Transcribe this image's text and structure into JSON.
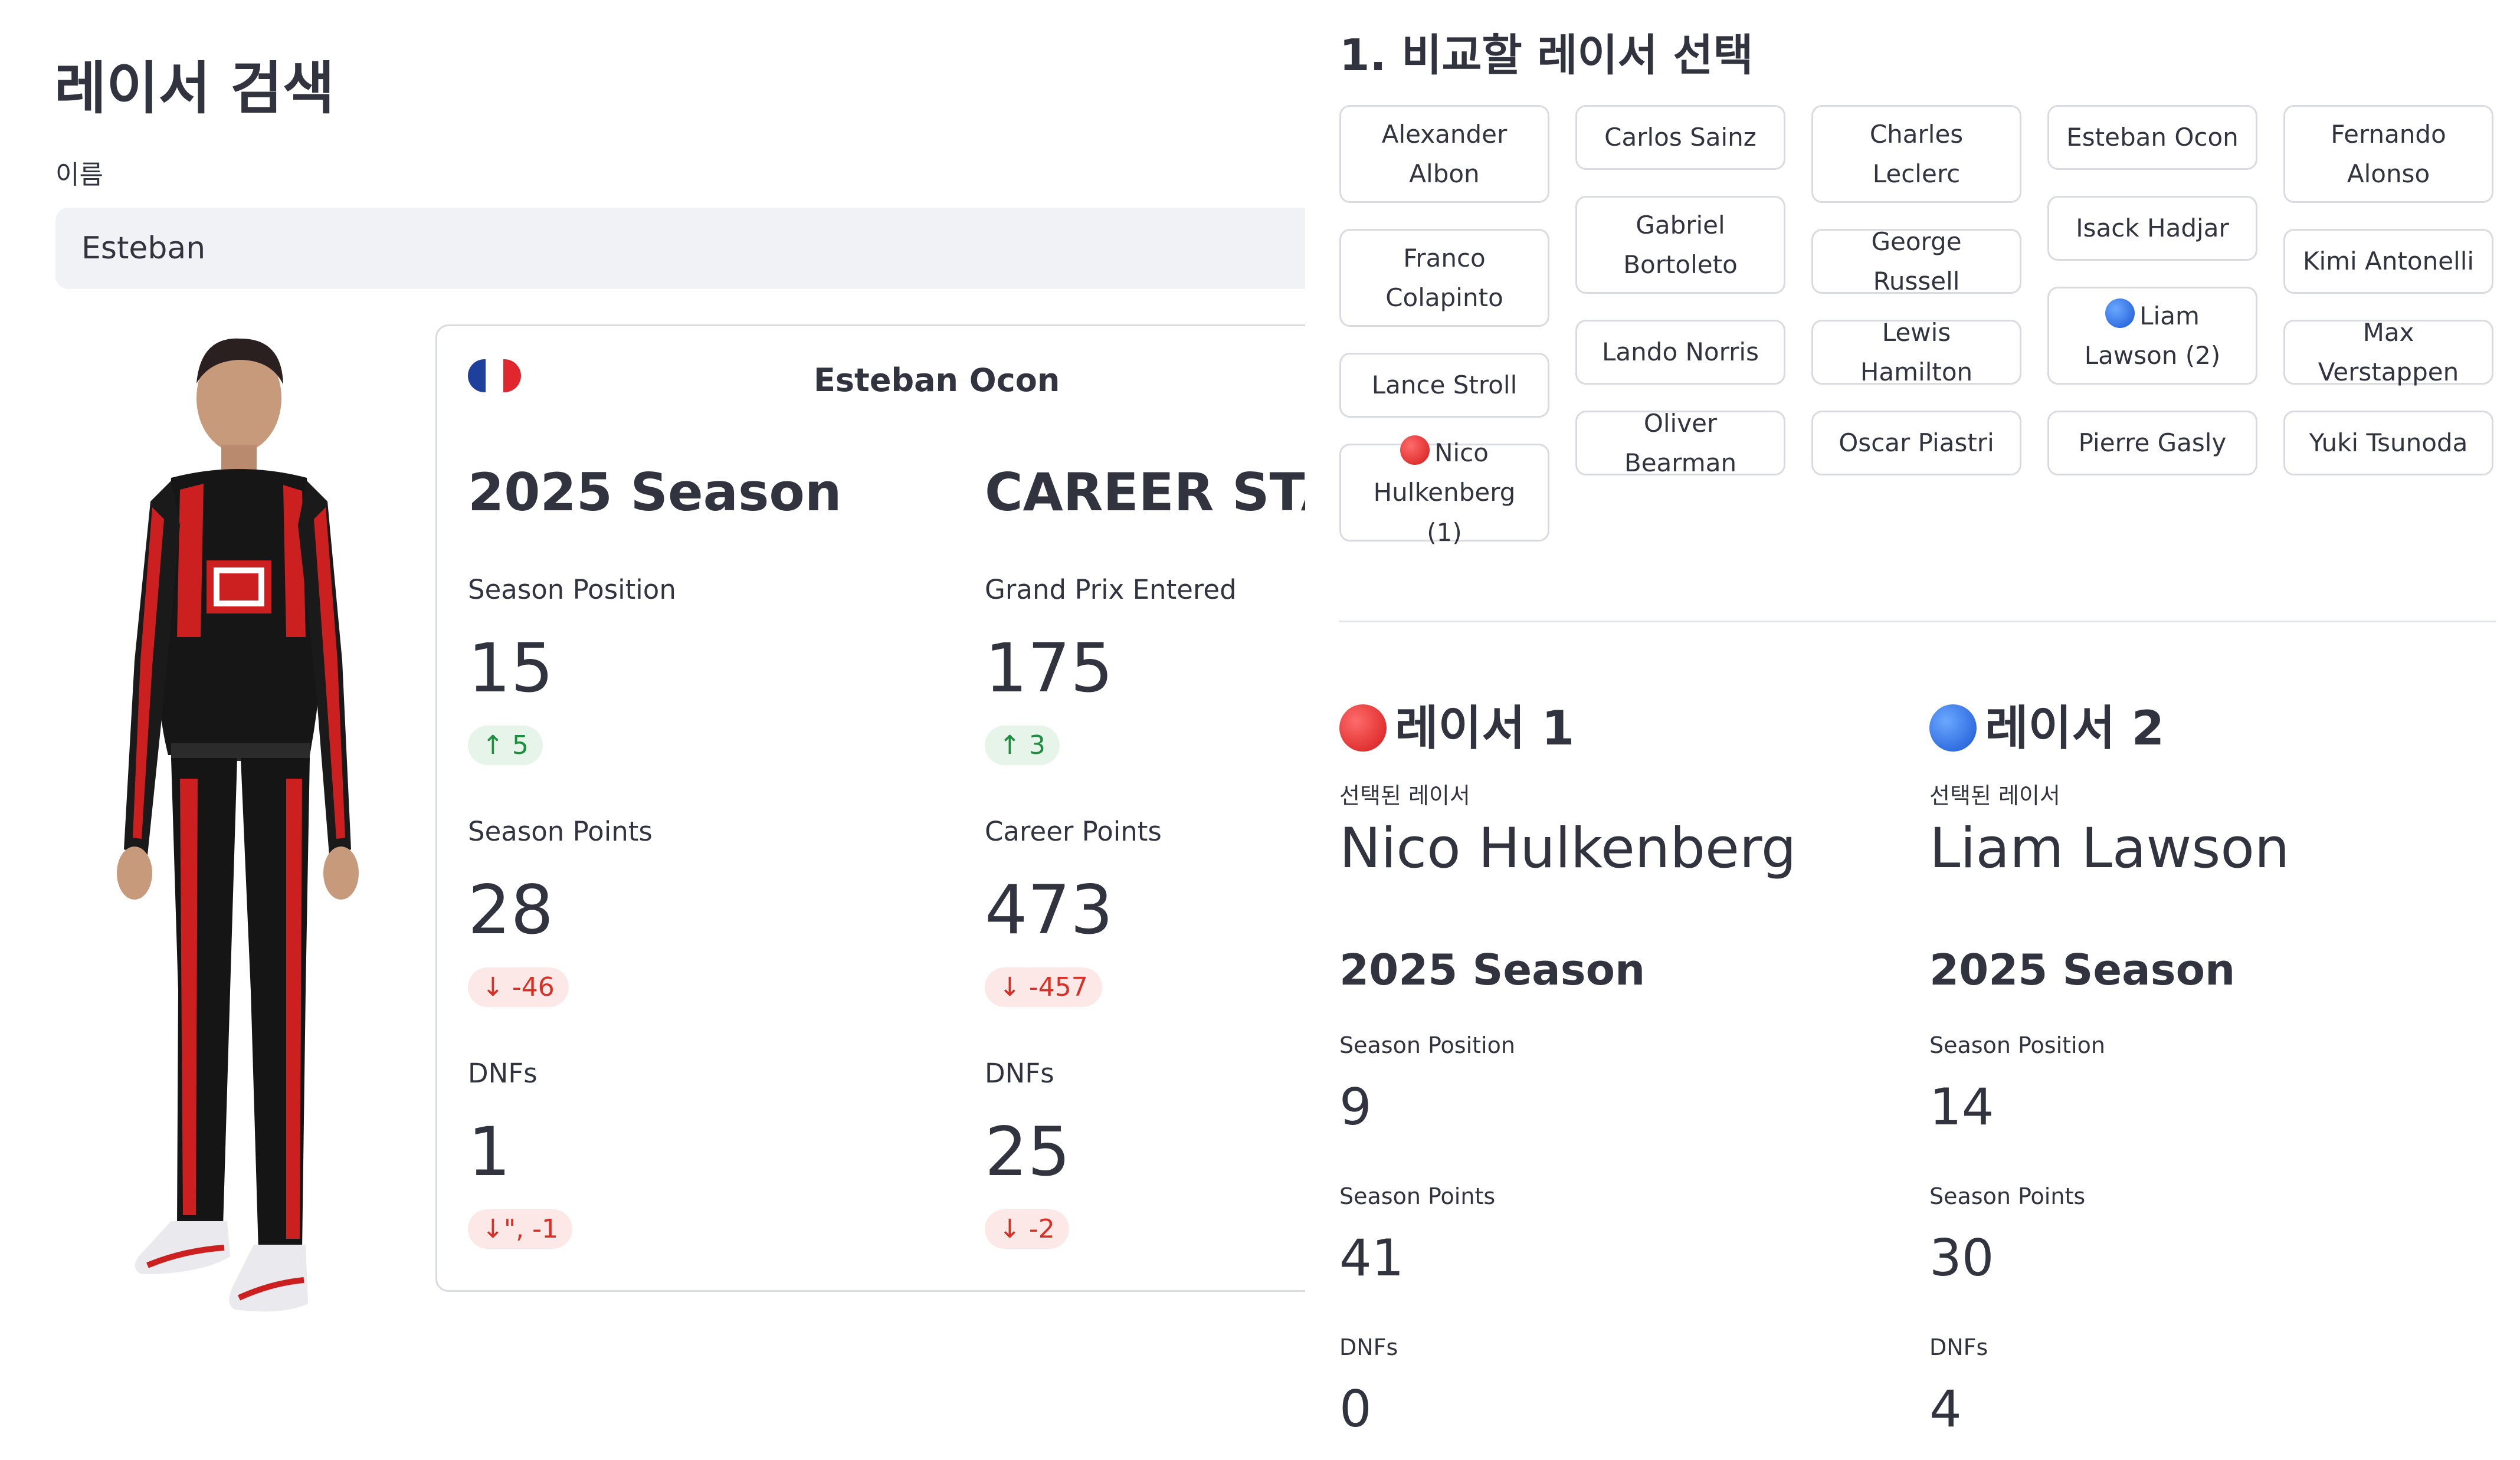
{
  "search": {
    "title": "레이서 검색",
    "label": "이름",
    "value": "Esteban"
  },
  "card": {
    "driver_name": "Esteban Ocon",
    "season": {
      "heading": "2025 Season",
      "metrics": [
        {
          "label": "Season Position",
          "value": "15",
          "delta": "5",
          "direction": "up"
        },
        {
          "label": "Season Points",
          "value": "28",
          "delta": "-46",
          "direction": "down"
        },
        {
          "label": "DNFs",
          "value": "1",
          "delta": "-1",
          "direction": "down"
        }
      ]
    },
    "career": {
      "heading": "CAREER STATS",
      "metrics": [
        {
          "label": "Grand Prix Entered",
          "value": "175",
          "delta": "3",
          "direction": "up"
        },
        {
          "label": "Career Points",
          "value": "473",
          "delta": "-457",
          "direction": "down"
        },
        {
          "label": "DNFs",
          "value": "25",
          "delta": "-2",
          "direction": "down"
        }
      ]
    }
  },
  "selection": {
    "title": "1. 비교할 레이서 선택",
    "columns": [
      [
        {
          "label": "Alexander Albon"
        },
        {
          "label": "Franco Colapinto"
        },
        {
          "label": "Lance Stroll"
        },
        {
          "label": "Nico Hulkenberg (1)",
          "marker": "red"
        }
      ],
      [
        {
          "label": "Carlos Sainz"
        },
        {
          "label": "Gabriel Bortoleto"
        },
        {
          "label": "Lando Norris"
        },
        {
          "label": "Oliver Bearman"
        }
      ],
      [
        {
          "label": "Charles Leclerc"
        },
        {
          "label": "George Russell"
        },
        {
          "label": "Lewis Hamilton"
        },
        {
          "label": "Oscar Piastri"
        }
      ],
      [
        {
          "label": "Esteban Ocon"
        },
        {
          "label": "Isack Hadjar"
        },
        {
          "label": "Liam Lawson (2)",
          "marker": "blue"
        },
        {
          "label": "Pierre Gasly"
        }
      ],
      [
        {
          "label": "Fernando Alonso"
        },
        {
          "label": "Kimi Antonelli"
        },
        {
          "label": "Max Verstappen"
        },
        {
          "label": "Yuki Tsunoda"
        }
      ]
    ]
  },
  "comparison": {
    "racer1": {
      "heading": "레이서 1",
      "sub": "선택된 레이서",
      "name": "Nico Hulkenberg",
      "season": "2025 Season",
      "metrics": [
        {
          "label": "Season Position",
          "value": "9"
        },
        {
          "label": "Season Points",
          "value": "41"
        },
        {
          "label": "DNFs",
          "value": "0"
        }
      ]
    },
    "racer2": {
      "heading": "레이서 2",
      "sub": "선택된 레이서",
      "name": "Liam Lawson",
      "season": "2025 Season",
      "metrics": [
        {
          "label": "Season Position",
          "value": "14"
        },
        {
          "label": "Season Points",
          "value": "30"
        },
        {
          "label": "DNFs",
          "value": "4"
        }
      ]
    }
  },
  "colors": {
    "accent_red": "#d41a1a",
    "accent_blue": "#1a56d4",
    "delta_up": "#1e8e3e",
    "delta_down": "#d93025",
    "input_bg": "#f0f2f6"
  }
}
